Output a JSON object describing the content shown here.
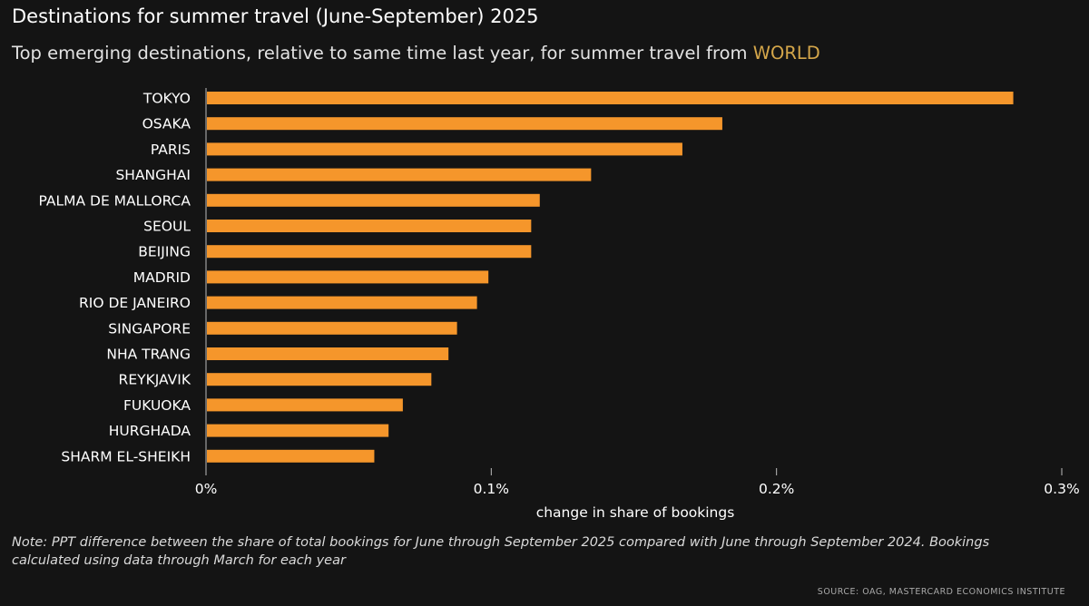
{
  "header": {
    "title": "Destinations for summer travel (June-September) 2025",
    "subtitle_prefix": "Top emerging destinations, relative to same time last year, for summer travel from ",
    "subtitle_highlight": "WORLD"
  },
  "footer": {
    "note_line1": "Note: PPT difference between the share of total bookings for June through September 2025 compared with June through September 2024. Bookings",
    "note_line2": "calculated using data through March for each year",
    "source": "SOURCE: OAG, MASTERCARD ECONOMICS INSTITUTE"
  },
  "colors": {
    "bar": "#f5962b",
    "background": "#141414",
    "accent": "#d4a64a",
    "gridline": "#bdbdbd"
  },
  "chart_data": {
    "type": "bar",
    "orientation": "horizontal",
    "categories": [
      "TOKYO",
      "OSAKA",
      "PARIS",
      "SHANGHAI",
      "PALMA DE MALLORCA",
      "SEOUL",
      "BEIJING",
      "MADRID",
      "RIO DE JANEIRO",
      "SINGAPORE",
      "NHA TRANG",
      "REYKJAVIK",
      "FUKUOKA",
      "HURGHADA",
      "SHARM EL-SHEIKH"
    ],
    "values": [
      0.283,
      0.181,
      0.167,
      0.135,
      0.117,
      0.114,
      0.114,
      0.099,
      0.095,
      0.088,
      0.085,
      0.079,
      0.069,
      0.064,
      0.059
    ],
    "xlabel": "change in share of bookings",
    "ylabel": "",
    "xlim": [
      0,
      0.3
    ],
    "xticks": [
      0,
      0.1,
      0.2,
      0.3
    ],
    "xtick_labels": [
      "0%",
      "0.1%",
      "0.2%",
      "0.3%"
    ],
    "grid": false,
    "legend": "none"
  }
}
